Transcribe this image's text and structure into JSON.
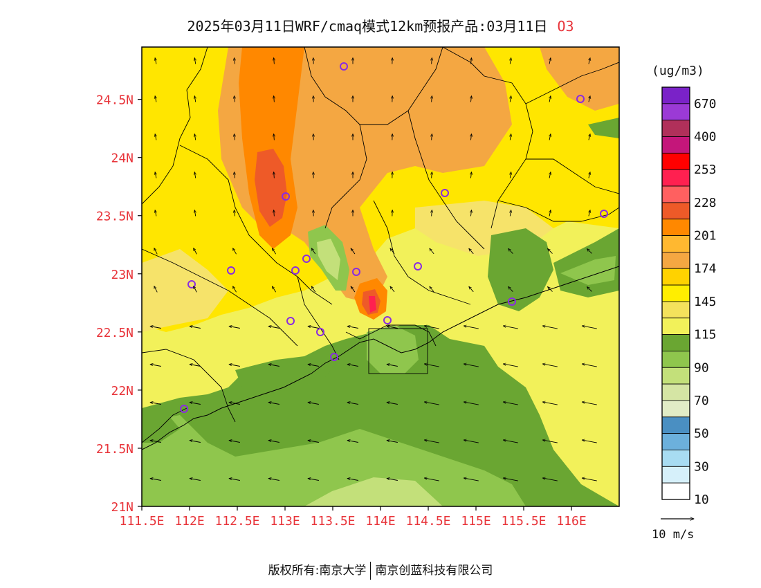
{
  "title": {
    "main": "2025年03月11日WRF/cmaq模式12km预报产品:03月11日",
    "pollutant": "O3"
  },
  "map": {
    "lat_labels": [
      "24.5N",
      "24N",
      "23.5N",
      "23N",
      "22.5N",
      "22N",
      "21.5N",
      "21N"
    ],
    "lon_labels": [
      "111.5E",
      "112E",
      "112.5E",
      "113E",
      "113.5E",
      "114E",
      "114.5E",
      "115E",
      "115.5E",
      "116E"
    ],
    "lon_range": [
      111.5,
      116.5
    ],
    "lat_range": [
      21.0,
      24.95
    ],
    "axis_label_color": "#e8343a",
    "station_color": "#8a2be2"
  },
  "colorbar": {
    "unit": "(ug/m3)",
    "labels": [
      "670",
      "400",
      "253",
      "228",
      "201",
      "174",
      "145",
      "115",
      "90",
      "70",
      "50",
      "30",
      "10"
    ],
    "colors": [
      "#7a22c8",
      "#9b3ad6",
      "#b0305a",
      "#c4167a",
      "#ff0000",
      "#ff2050",
      "#ff6060",
      "#ee5a28",
      "#ff8800",
      "#ffb830",
      "#f4a742",
      "#ffd200",
      "#ffee00",
      "#f4e25c",
      "#f2f15a",
      "#6aa632",
      "#8fc64d",
      "#c3e07a",
      "#d5e5a4",
      "#e1ecc6",
      "#4a8fc2",
      "#6cb0dc",
      "#a8dcf2",
      "#d6f0fa",
      "#ffffff"
    ]
  },
  "wind_legend": {
    "label": "10 m/s"
  },
  "footer": {
    "left": "版权所有:南京大学",
    "right": "南京创蓝科技有限公司"
  }
}
